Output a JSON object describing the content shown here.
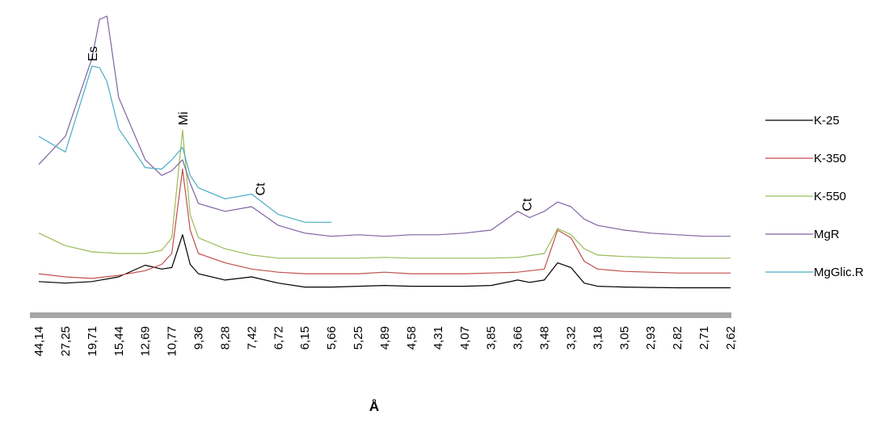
{
  "chart_data": {
    "type": "line",
    "xlabel": "Å",
    "ylabel": "",
    "grid": false,
    "legend_position": "right",
    "axis_color": "#a6a6a6",
    "x_ticks": [
      "44,14",
      "27,25",
      "19,71",
      "15,44",
      "12,69",
      "10,77",
      "9,36",
      "8,28",
      "7,42",
      "6,72",
      "6,15",
      "5,66",
      "5,25",
      "4,89",
      "4,58",
      "4,31",
      "4,07",
      "3,85",
      "3,66",
      "3,48",
      "3,32",
      "3,18",
      "3,05",
      "2,93",
      "2,82",
      "2,71",
      "2,62"
    ],
    "peak_labels": [
      {
        "text": "Es",
        "series": "MgGlic.R",
        "x": 19.71
      },
      {
        "text": "Mi",
        "series": "K-550",
        "x": 10.2
      },
      {
        "text": "Ct",
        "series": "MgGlic.R",
        "x": 7.2
      },
      {
        "text": "Ct",
        "series": "MgR",
        "x": 3.6
      }
    ],
    "series": [
      {
        "name": "K-25",
        "color": "#000000",
        "points": [
          [
            44.14,
            0.12
          ],
          [
            27.25,
            0.11
          ],
          [
            19.71,
            0.12
          ],
          [
            15.44,
            0.15
          ],
          [
            12.69,
            0.225
          ],
          [
            11.5,
            0.2
          ],
          [
            10.77,
            0.21
          ],
          [
            10.2,
            0.42
          ],
          [
            9.8,
            0.23
          ],
          [
            9.36,
            0.17
          ],
          [
            8.28,
            0.13
          ],
          [
            7.42,
            0.15
          ],
          [
            6.72,
            0.11
          ],
          [
            6.15,
            0.085
          ],
          [
            5.66,
            0.085
          ],
          [
            5.25,
            0.09
          ],
          [
            4.89,
            0.095
          ],
          [
            4.58,
            0.09
          ],
          [
            4.31,
            0.09
          ],
          [
            4.07,
            0.09
          ],
          [
            3.85,
            0.095
          ],
          [
            3.66,
            0.13
          ],
          [
            3.58,
            0.115
          ],
          [
            3.48,
            0.13
          ],
          [
            3.4,
            0.24
          ],
          [
            3.32,
            0.21
          ],
          [
            3.25,
            0.11
          ],
          [
            3.18,
            0.09
          ],
          [
            3.05,
            0.085
          ],
          [
            2.93,
            0.082
          ],
          [
            2.82,
            0.08
          ],
          [
            2.71,
            0.08
          ],
          [
            2.62,
            0.08
          ]
        ]
      },
      {
        "name": "K-350",
        "color": "#c0504d",
        "points": [
          [
            44.14,
            0.17
          ],
          [
            27.25,
            0.15
          ],
          [
            19.71,
            0.14
          ],
          [
            15.44,
            0.16
          ],
          [
            12.69,
            0.19
          ],
          [
            11.5,
            0.23
          ],
          [
            10.77,
            0.3
          ],
          [
            10.2,
            0.84
          ],
          [
            9.8,
            0.45
          ],
          [
            9.36,
            0.3
          ],
          [
            8.28,
            0.24
          ],
          [
            7.42,
            0.2
          ],
          [
            6.72,
            0.18
          ],
          [
            6.15,
            0.17
          ],
          [
            5.66,
            0.17
          ],
          [
            5.25,
            0.17
          ],
          [
            4.89,
            0.18
          ],
          [
            4.58,
            0.17
          ],
          [
            4.31,
            0.17
          ],
          [
            4.07,
            0.17
          ],
          [
            3.85,
            0.175
          ],
          [
            3.66,
            0.18
          ],
          [
            3.48,
            0.2
          ],
          [
            3.4,
            0.45
          ],
          [
            3.32,
            0.4
          ],
          [
            3.25,
            0.25
          ],
          [
            3.18,
            0.2
          ],
          [
            3.05,
            0.185
          ],
          [
            2.93,
            0.18
          ],
          [
            2.82,
            0.175
          ],
          [
            2.71,
            0.175
          ],
          [
            2.62,
            0.175
          ]
        ]
      },
      {
        "name": "K-550",
        "color": "#9bbb59",
        "points": [
          [
            44.14,
            0.43
          ],
          [
            27.25,
            0.35
          ],
          [
            19.71,
            0.31
          ],
          [
            15.44,
            0.3
          ],
          [
            12.69,
            0.3
          ],
          [
            11.5,
            0.32
          ],
          [
            10.77,
            0.4
          ],
          [
            10.2,
            1.09
          ],
          [
            9.8,
            0.55
          ],
          [
            9.36,
            0.4
          ],
          [
            8.28,
            0.33
          ],
          [
            7.42,
            0.29
          ],
          [
            6.72,
            0.27
          ],
          [
            6.15,
            0.27
          ],
          [
            5.66,
            0.27
          ],
          [
            5.25,
            0.27
          ],
          [
            4.89,
            0.275
          ],
          [
            4.58,
            0.27
          ],
          [
            4.31,
            0.27
          ],
          [
            4.07,
            0.27
          ],
          [
            3.85,
            0.27
          ],
          [
            3.66,
            0.275
          ],
          [
            3.48,
            0.3
          ],
          [
            3.4,
            0.46
          ],
          [
            3.32,
            0.42
          ],
          [
            3.25,
            0.33
          ],
          [
            3.18,
            0.29
          ],
          [
            3.05,
            0.28
          ],
          [
            2.93,
            0.275
          ],
          [
            2.82,
            0.27
          ],
          [
            2.71,
            0.27
          ],
          [
            2.62,
            0.27
          ]
        ]
      },
      {
        "name": "MgR",
        "color": "#8064a2",
        "points": [
          [
            44.14,
            0.87
          ],
          [
            27.25,
            1.05
          ],
          [
            19.71,
            1.55
          ],
          [
            18.5,
            1.8
          ],
          [
            17.3,
            1.82
          ],
          [
            15.44,
            1.3
          ],
          [
            12.69,
            0.9
          ],
          [
            11.5,
            0.8
          ],
          [
            10.77,
            0.83
          ],
          [
            10.2,
            0.9
          ],
          [
            9.8,
            0.75
          ],
          [
            9.36,
            0.62
          ],
          [
            8.28,
            0.57
          ],
          [
            7.42,
            0.6
          ],
          [
            6.72,
            0.48
          ],
          [
            6.15,
            0.43
          ],
          [
            5.66,
            0.41
          ],
          [
            5.25,
            0.42
          ],
          [
            4.89,
            0.41
          ],
          [
            4.58,
            0.42
          ],
          [
            4.31,
            0.42
          ],
          [
            4.07,
            0.43
          ],
          [
            3.85,
            0.45
          ],
          [
            3.66,
            0.57
          ],
          [
            3.58,
            0.53
          ],
          [
            3.48,
            0.57
          ],
          [
            3.4,
            0.63
          ],
          [
            3.32,
            0.6
          ],
          [
            3.25,
            0.52
          ],
          [
            3.18,
            0.48
          ],
          [
            3.05,
            0.45
          ],
          [
            2.93,
            0.43
          ],
          [
            2.82,
            0.42
          ],
          [
            2.71,
            0.41
          ],
          [
            2.62,
            0.41
          ]
        ]
      },
      {
        "name": "MgGlic.R",
        "color": "#4bacc6",
        "points": [
          [
            44.14,
            1.05
          ],
          [
            27.25,
            0.95
          ],
          [
            19.71,
            1.5
          ],
          [
            18.5,
            1.49
          ],
          [
            17.3,
            1.4
          ],
          [
            15.44,
            1.1
          ],
          [
            12.69,
            0.85
          ],
          [
            11.5,
            0.84
          ],
          [
            10.77,
            0.9
          ],
          [
            10.2,
            0.98
          ],
          [
            9.8,
            0.8
          ],
          [
            9.36,
            0.72
          ],
          [
            8.28,
            0.65
          ],
          [
            7.42,
            0.68
          ],
          [
            6.72,
            0.55
          ],
          [
            6.15,
            0.5
          ],
          [
            5.66,
            0.5
          ]
        ]
      }
    ]
  }
}
